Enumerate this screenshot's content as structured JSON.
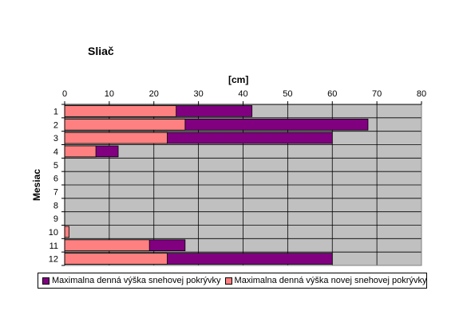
{
  "chart_data": {
    "type": "bar",
    "orientation": "horizontal",
    "stacked": false,
    "overlaid": true,
    "title": "Sliač",
    "xlabel": "[cm]",
    "ylabel": "Mesiac",
    "categories": [
      "1",
      "2",
      "3",
      "4",
      "5",
      "6",
      "7",
      "8",
      "9",
      "10",
      "11",
      "12"
    ],
    "xlim": [
      0,
      80
    ],
    "xticks": [
      "0",
      "10",
      "20",
      "30",
      "40",
      "50",
      "60",
      "70",
      "80"
    ],
    "series": [
      {
        "name": "Maximalna denná výška snehovej pokrývky",
        "color": "#800080",
        "values": [
          42,
          68,
          60,
          12,
          0,
          0,
          0,
          0,
          0,
          0,
          27,
          60
        ]
      },
      {
        "name": "Maximalna denná výška novej snehovej pokrývky",
        "color": "#ff8080",
        "values": [
          25,
          27,
          23,
          7,
          0,
          0,
          0,
          0,
          0,
          1,
          19,
          23
        ]
      }
    ],
    "plot_background": "#c0c0c0",
    "grid": true,
    "legend_position": "bottom"
  }
}
